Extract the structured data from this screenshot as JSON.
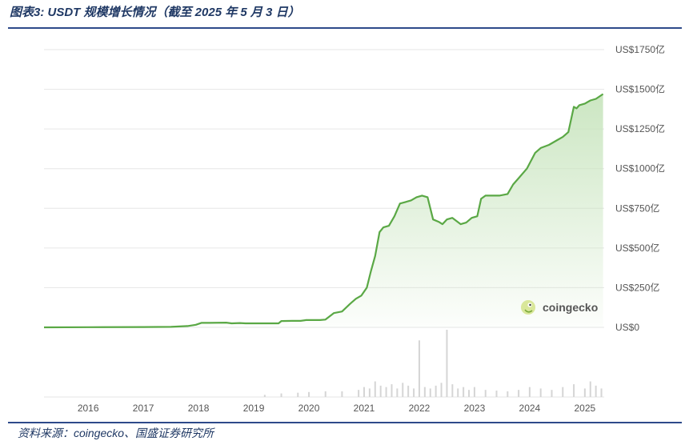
{
  "figure": {
    "title": "图表3:  USDT 规模增长情况（截至 2025 年 5 月 3 日）",
    "source": "资料来源：coingecko、国盛证券研究所"
  },
  "watermark": {
    "text": "coingecko",
    "icon": "gecko-logo-icon"
  },
  "colors": {
    "line": "#5aa845",
    "area_top": "#c9e5bf",
    "grid": "#e6e6e6",
    "volume": "#d5d5d5",
    "title": "#1f3864"
  },
  "chart_data": {
    "type": "area",
    "title": "",
    "xlabel": "",
    "ylabel": "",
    "y_unit": "亿 USD",
    "ylim": [
      0,
      1750
    ],
    "y_ticks": [
      0,
      250,
      500,
      750,
      1000,
      1250,
      1500,
      1750
    ],
    "y_tick_labels": [
      "US$0",
      "US$250亿",
      "US$500亿",
      "US$750亿",
      "US$1000亿",
      "US$1250亿",
      "US$1500亿",
      "US$1750亿"
    ],
    "xlim": [
      2015.2,
      2025.35
    ],
    "x_ticks": [
      2016,
      2017,
      2018,
      2019,
      2020,
      2021,
      2022,
      2023,
      2024,
      2025
    ],
    "x_tick_labels": [
      "2016",
      "2017",
      "2018",
      "2019",
      "2020",
      "2021",
      "2022",
      "2023",
      "2024",
      "2025"
    ],
    "grid": true,
    "series": [
      {
        "x": [
          2015.2,
          2016.0,
          2017.0,
          2017.5,
          2017.8,
          2017.95,
          2018.05,
          2018.2,
          2018.5,
          2018.6,
          2018.75,
          2018.85,
          2019.0,
          2019.3,
          2019.45,
          2019.5,
          2019.7,
          2019.85,
          2019.95,
          2020.1,
          2020.2,
          2020.3,
          2020.45,
          2020.6,
          2020.75,
          2020.85,
          2020.95,
          2021.05,
          2021.12,
          2021.2,
          2021.28,
          2021.35,
          2021.45,
          2021.55,
          2021.65,
          2021.75,
          2021.85,
          2021.95,
          2022.05,
          2022.15,
          2022.25,
          2022.35,
          2022.42,
          2022.5,
          2022.6,
          2022.75,
          2022.85,
          2022.95,
          2023.05,
          2023.12,
          2023.2,
          2023.3,
          2023.45,
          2023.6,
          2023.7,
          2023.8,
          2023.95,
          2024.1,
          2024.2,
          2024.35,
          2024.5,
          2024.6,
          2024.7,
          2024.8,
          2024.85,
          2024.9,
          2025.0,
          2025.1,
          2025.2,
          2025.33
        ],
        "values": [
          0,
          1,
          2,
          3,
          8,
          16,
          28,
          28,
          30,
          25,
          27,
          25,
          25,
          25,
          25,
          40,
          41,
          41,
          46,
          46,
          46,
          49,
          90,
          100,
          150,
          180,
          200,
          250,
          350,
          450,
          600,
          630,
          640,
          700,
          780,
          790,
          800,
          820,
          830,
          820,
          680,
          665,
          650,
          680,
          690,
          650,
          660,
          690,
          700,
          810,
          830,
          830,
          830,
          840,
          900,
          940,
          1000,
          1100,
          1130,
          1150,
          1180,
          1200,
          1230,
          1390,
          1380,
          1400,
          1410,
          1430,
          1440,
          1470
        ]
      }
    ],
    "volume": {
      "x": [
        2019.2,
        2019.5,
        2019.8,
        2020.0,
        2020.3,
        2020.6,
        2020.9,
        2021.0,
        2021.1,
        2021.2,
        2021.3,
        2021.4,
        2021.5,
        2021.6,
        2021.7,
        2021.8,
        2021.9,
        2022.0,
        2022.1,
        2022.2,
        2022.3,
        2022.4,
        2022.5,
        2022.6,
        2022.7,
        2022.8,
        2022.9,
        2023.0,
        2023.2,
        2023.4,
        2023.6,
        2023.8,
        2024.0,
        2024.2,
        2024.4,
        2024.6,
        2024.8,
        2025.0,
        2025.1,
        2025.2,
        2025.3
      ],
      "values": [
        3,
        5,
        6,
        7,
        8,
        8,
        10,
        14,
        12,
        22,
        16,
        14,
        18,
        12,
        20,
        16,
        12,
        80,
        14,
        12,
        16,
        20,
        95,
        18,
        12,
        14,
        10,
        14,
        10,
        9,
        8,
        10,
        14,
        12,
        10,
        14,
        18,
        12,
        22,
        16,
        12
      ]
    }
  }
}
